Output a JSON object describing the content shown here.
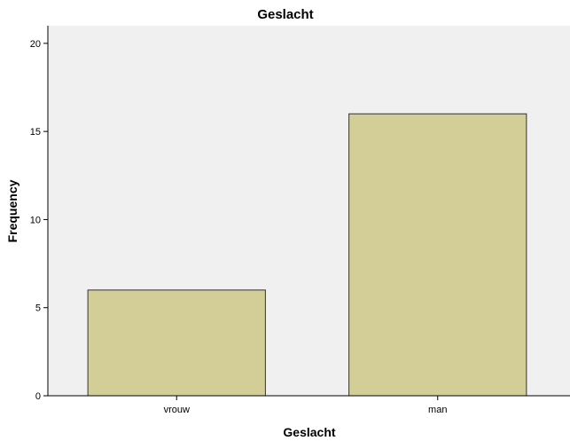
{
  "chart_data": {
    "type": "bar",
    "title": "Geslacht",
    "xlabel": "Geslacht",
    "ylabel": "Frequency",
    "categories": [
      "vrouw",
      "man"
    ],
    "values": [
      6,
      16
    ],
    "ylim": [
      0,
      21
    ],
    "yticks": [
      0,
      5,
      10,
      15,
      20
    ],
    "grid": false,
    "legend": "none",
    "colors": {
      "plot_background": "#f0f0f0",
      "bar_fill": "#d3ce97",
      "bar_stroke": "#333333"
    }
  }
}
